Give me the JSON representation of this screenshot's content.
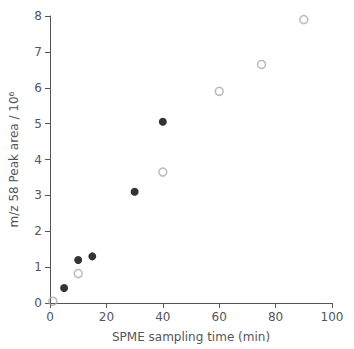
{
  "chart_data": {
    "type": "scatter",
    "xlabel": "SPME sampling time (min)",
    "ylabel": "m/z 58 Peak area / 10⁶",
    "xlim": [
      0,
      100
    ],
    "ylim": [
      0,
      8
    ],
    "xticks": [
      0,
      20,
      40,
      60,
      80,
      100
    ],
    "yticks": [
      0,
      1,
      2,
      3,
      4,
      5,
      6,
      7,
      8
    ],
    "grid": false,
    "series": [
      {
        "x": [
          5,
          10,
          15,
          30,
          40
        ],
        "values": [
          0.42,
          1.2,
          1.3,
          3.1,
          5.05
        ],
        "color": "black",
        "marker": "circle"
      },
      {
        "x": [
          1,
          10,
          40,
          60,
          75,
          90
        ],
        "values": [
          0.05,
          0.82,
          3.65,
          5.9,
          6.65,
          7.9
        ],
        "color": "#aaaaaa",
        "marker": "open_circle"
      }
    ]
  }
}
